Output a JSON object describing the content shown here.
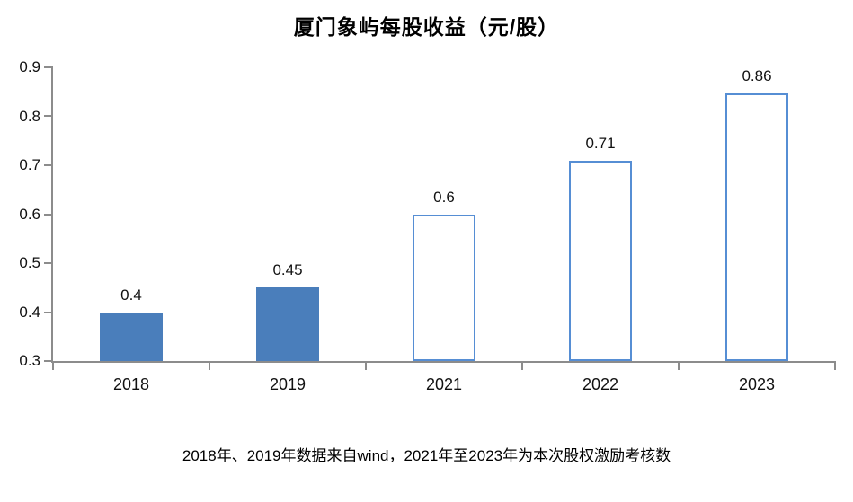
{
  "chart_data": {
    "type": "bar",
    "title": "厦门象屿每股收益（元/股）",
    "categories": [
      "2018",
      "2019",
      "2021",
      "2022",
      "2023"
    ],
    "values": [
      0.4,
      0.45,
      0.6,
      0.71,
      0.86
    ],
    "value_labels": [
      "0.4",
      "0.45",
      "0.6",
      "0.71",
      "0.86"
    ],
    "bar_styles": [
      "solid",
      "solid",
      "outline",
      "outline",
      "outline"
    ],
    "ylim": [
      0.3,
      0.9
    ],
    "yticks": [
      0.3,
      0.4,
      0.5,
      0.6,
      0.7,
      0.8,
      0.9
    ],
    "ytick_labels": [
      "0.3",
      "0.4",
      "0.5",
      "0.6",
      "0.7",
      "0.8",
      "0.9"
    ],
    "xlabel": "",
    "ylabel": "",
    "grid": false,
    "legend": false,
    "annotation": "2018年、2019年数据来自wind，2021年至2023年为本次股权激励考核数",
    "colors": {
      "bar_fill": "#4a7ebb",
      "bar_outline": "#568ed4",
      "axis": "#8c8c8c",
      "text": "#111111",
      "background": "#ffffff"
    }
  }
}
